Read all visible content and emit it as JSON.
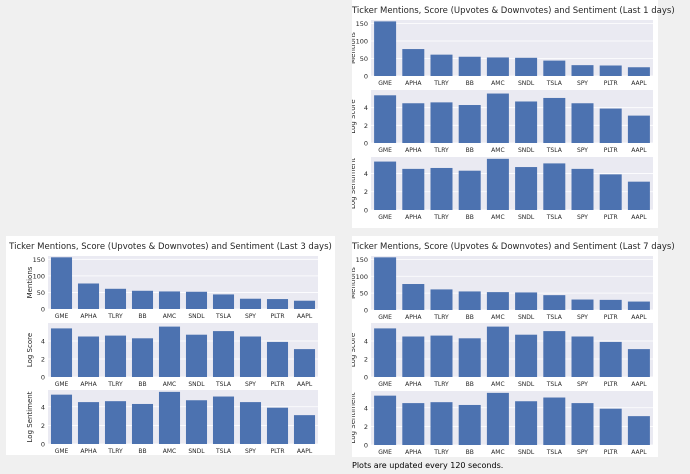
{
  "colors": {
    "bar": "#4c72b0",
    "plot_bg": "#eaeaf2",
    "grid": "#ffffff",
    "panel_bg": "#ffffff",
    "page_bg": "#f0f0f0",
    "text": "#262626"
  },
  "footer": {
    "note": "Plots are updated every 120 seconds."
  },
  "chart_data": [
    {
      "title": "Ticker Mentions, Score (Upvotes & Downvotes) and Sentiment (Last 1 days)",
      "subplots": [
        {
          "type": "bar",
          "ylabel": "Mentions",
          "ylim": [
            0,
            160
          ],
          "yticks": [
            0,
            50,
            100,
            150
          ],
          "categories": [
            "GME",
            "APHA",
            "TLRY",
            "BB",
            "AMC",
            "SNDL",
            "TSLA",
            "SPY",
            "PLTR",
            "AAPL"
          ],
          "values": [
            156,
            77,
            61,
            55,
            53,
            52,
            44,
            31,
            30,
            25
          ]
        },
        {
          "type": "bar",
          "ylabel": "Log Score",
          "ylim": [
            0,
            6
          ],
          "yticks": [
            0,
            2,
            4
          ],
          "categories": [
            "GME",
            "APHA",
            "TLRY",
            "BB",
            "AMC",
            "SNDL",
            "TSLA",
            "SPY",
            "PLTR",
            "AAPL"
          ],
          "values": [
            5.4,
            4.5,
            4.6,
            4.3,
            5.6,
            4.7,
            5.1,
            4.5,
            3.9,
            3.1
          ]
        },
        {
          "type": "bar",
          "ylabel": "Log Sentiment",
          "ylim": [
            0,
            5.8
          ],
          "yticks": [
            0,
            2,
            4
          ],
          "categories": [
            "GME",
            "APHA",
            "TLRY",
            "BB",
            "AMC",
            "SNDL",
            "TSLA",
            "SPY",
            "PLTR",
            "AAPL"
          ],
          "values": [
            5.3,
            4.5,
            4.6,
            4.3,
            5.6,
            4.7,
            5.1,
            4.5,
            3.9,
            3.1
          ]
        }
      ]
    },
    {
      "title": "Ticker Mentions, Score (Upvotes & Downvotes) and Sentiment (Last 3 days)",
      "subplots": [
        {
          "type": "bar",
          "ylabel": "Mentions",
          "ylim": [
            0,
            160
          ],
          "yticks": [
            0,
            50,
            100,
            150
          ],
          "categories": [
            "GME",
            "APHA",
            "TLRY",
            "BB",
            "AMC",
            "SNDL",
            "TSLA",
            "SPY",
            "PLTR",
            "AAPL"
          ],
          "values": [
            156,
            77,
            61,
            55,
            53,
            52,
            44,
            31,
            30,
            25
          ]
        },
        {
          "type": "bar",
          "ylabel": "Log Score",
          "ylim": [
            0,
            6
          ],
          "yticks": [
            0,
            2,
            4
          ],
          "categories": [
            "GME",
            "APHA",
            "TLRY",
            "BB",
            "AMC",
            "SNDL",
            "TSLA",
            "SPY",
            "PLTR",
            "AAPL"
          ],
          "values": [
            5.4,
            4.5,
            4.6,
            4.3,
            5.6,
            4.7,
            5.1,
            4.5,
            3.9,
            3.1
          ]
        },
        {
          "type": "bar",
          "ylabel": "Log Sentiment",
          "ylim": [
            0,
            5.8
          ],
          "yticks": [
            0,
            2,
            4
          ],
          "categories": [
            "GME",
            "APHA",
            "TLRY",
            "BB",
            "AMC",
            "SNDL",
            "TSLA",
            "SPY",
            "PLTR",
            "AAPL"
          ],
          "values": [
            5.3,
            4.5,
            4.6,
            4.3,
            5.6,
            4.7,
            5.1,
            4.5,
            3.9,
            3.1
          ]
        }
      ]
    },
    {
      "title": "Ticker Mentions, Score (Upvotes & Downvotes) and Sentiment (Last 7 days)",
      "subplots": [
        {
          "type": "bar",
          "ylabel": "Mentions",
          "ylim": [
            0,
            160
          ],
          "yticks": [
            0,
            50,
            100,
            150
          ],
          "categories": [
            "GME",
            "APHA",
            "TLRY",
            "BB",
            "AMC",
            "SNDL",
            "TSLA",
            "SPY",
            "PLTR",
            "AAPL"
          ],
          "values": [
            156,
            77,
            61,
            55,
            53,
            52,
            44,
            31,
            30,
            25
          ]
        },
        {
          "type": "bar",
          "ylabel": "Log Score",
          "ylim": [
            0,
            6
          ],
          "yticks": [
            0,
            2,
            4
          ],
          "categories": [
            "GME",
            "APHA",
            "TLRY",
            "BB",
            "AMC",
            "SNDL",
            "TSLA",
            "SPY",
            "PLTR",
            "AAPL"
          ],
          "values": [
            5.4,
            4.5,
            4.6,
            4.3,
            5.6,
            4.7,
            5.1,
            4.5,
            3.9,
            3.1
          ]
        },
        {
          "type": "bar",
          "ylabel": "Log Sentiment",
          "ylim": [
            0,
            5.8
          ],
          "yticks": [
            0,
            2,
            4
          ],
          "categories": [
            "GME",
            "APHA",
            "TLRY",
            "BB",
            "AMC",
            "SNDL",
            "TSLA",
            "SPY",
            "PLTR",
            "AAPL"
          ],
          "values": [
            5.3,
            4.5,
            4.6,
            4.3,
            5.6,
            4.7,
            5.1,
            4.5,
            3.9,
            3.1
          ]
        }
      ]
    }
  ]
}
